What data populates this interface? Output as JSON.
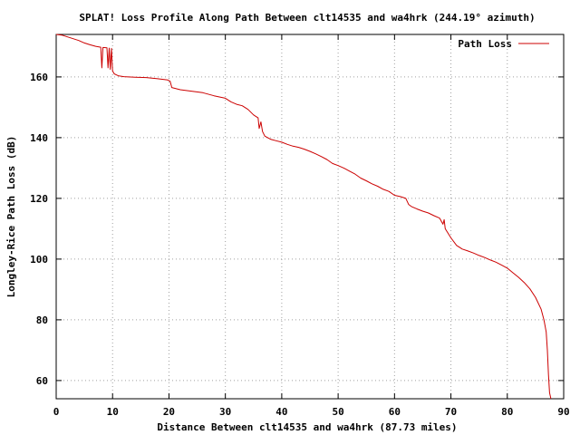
{
  "chart_data": {
    "type": "line",
    "title": "SPLAT! Loss Profile Along Path Between clt14535 and wa4hrk (244.19° azimuth)",
    "xlabel": "Distance Between clt14535 and wa4hrk (87.73 miles)",
    "ylabel": "Longley-Rice Path Loss (dB)",
    "xlim": [
      0,
      90
    ],
    "ylim": [
      54,
      174
    ],
    "x_ticks": [
      0,
      10,
      20,
      30,
      40,
      50,
      60,
      70,
      80,
      90
    ],
    "y_ticks": [
      60,
      80,
      100,
      120,
      140,
      160
    ],
    "grid": true,
    "legend_position": "top-right",
    "colors": {
      "series": "#cc0000",
      "grid": "#a0a0a0"
    },
    "series": [
      {
        "name": "Path Loss",
        "points": [
          [
            0,
            174
          ],
          [
            1,
            173.8
          ],
          [
            2,
            173.2
          ],
          [
            3,
            172.6
          ],
          [
            4,
            172
          ],
          [
            5,
            171.2
          ],
          [
            6,
            170.6
          ],
          [
            7,
            170.1
          ],
          [
            7.9,
            169.8
          ],
          [
            8.1,
            163
          ],
          [
            8.3,
            169.7
          ],
          [
            9,
            169.6
          ],
          [
            9.2,
            163
          ],
          [
            9.4,
            169.5
          ],
          [
            9.6,
            162.5
          ],
          [
            9.8,
            169.4
          ],
          [
            10,
            162
          ],
          [
            10.3,
            161
          ],
          [
            11,
            160.4
          ],
          [
            12,
            160.1
          ],
          [
            14,
            159.9
          ],
          [
            16,
            159.8
          ],
          [
            18,
            159.4
          ],
          [
            19.8,
            159
          ],
          [
            20.2,
            158.6
          ],
          [
            20.5,
            156.5
          ],
          [
            22,
            155.8
          ],
          [
            24,
            155.3
          ],
          [
            26,
            154.8
          ],
          [
            28,
            153.8
          ],
          [
            30,
            153
          ],
          [
            31,
            151.8
          ],
          [
            32,
            151
          ],
          [
            33,
            150.5
          ],
          [
            34,
            149.3
          ],
          [
            35,
            147.5
          ],
          [
            35.8,
            146.5
          ],
          [
            36,
            143
          ],
          [
            36.3,
            145.2
          ],
          [
            36.6,
            142
          ],
          [
            37,
            140.5
          ],
          [
            38,
            139.5
          ],
          [
            39,
            139
          ],
          [
            40,
            138.5
          ],
          [
            41,
            137.8
          ],
          [
            42,
            137.2
          ],
          [
            43,
            136.8
          ],
          [
            44,
            136.2
          ],
          [
            45,
            135.5
          ],
          [
            46,
            134.7
          ],
          [
            47,
            133.8
          ],
          [
            48,
            132.8
          ],
          [
            49,
            131.5
          ],
          [
            50,
            130.8
          ],
          [
            51,
            130
          ],
          [
            52,
            129
          ],
          [
            53,
            128
          ],
          [
            54,
            126.7
          ],
          [
            55,
            125.8
          ],
          [
            56,
            124.8
          ],
          [
            57,
            124
          ],
          [
            58,
            123
          ],
          [
            59,
            122.3
          ],
          [
            60,
            121
          ],
          [
            61,
            120.6
          ],
          [
            62,
            120
          ],
          [
            62.5,
            118
          ],
          [
            63,
            117.3
          ],
          [
            64,
            116.5
          ],
          [
            65,
            115.8
          ],
          [
            66,
            115.2
          ],
          [
            67,
            114.3
          ],
          [
            68,
            113.5
          ],
          [
            68.6,
            111.5
          ],
          [
            68.8,
            113
          ],
          [
            69,
            110
          ],
          [
            70,
            107
          ],
          [
            71,
            104.5
          ],
          [
            72,
            103.3
          ],
          [
            73,
            102.7
          ],
          [
            74,
            102
          ],
          [
            75,
            101.2
          ],
          [
            76,
            100.5
          ],
          [
            77,
            99.7
          ],
          [
            78,
            99
          ],
          [
            79,
            98
          ],
          [
            80,
            97
          ],
          [
            81,
            95.5
          ],
          [
            82,
            94
          ],
          [
            83,
            92.3
          ],
          [
            84,
            90.2
          ],
          [
            85,
            87.4
          ],
          [
            86,
            83.5
          ],
          [
            86.5,
            80
          ],
          [
            86.9,
            76
          ],
          [
            87.1,
            70
          ],
          [
            87.3,
            62
          ],
          [
            87.5,
            56
          ],
          [
            87.73,
            54
          ]
        ]
      }
    ]
  }
}
